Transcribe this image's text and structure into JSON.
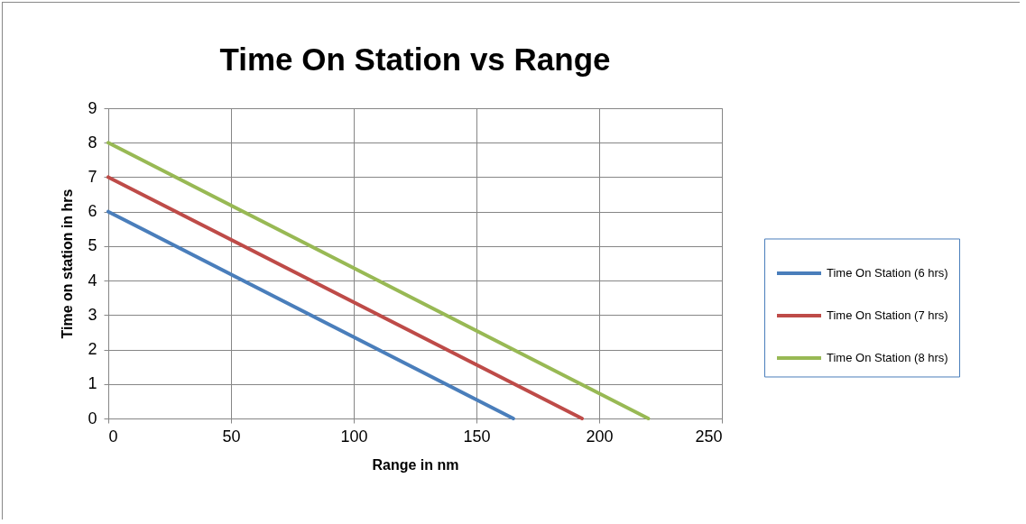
{
  "chart_data": {
    "type": "line",
    "title": "Time On Station vs Range",
    "xlabel": "Range in nm",
    "ylabel": "Time on station in hrs",
    "xlim": [
      0,
      250
    ],
    "xticks": [
      0,
      50,
      100,
      150,
      200,
      250
    ],
    "ylim": [
      0,
      9
    ],
    "yticks": [
      0,
      1,
      2,
      3,
      4,
      5,
      6,
      7,
      8,
      9
    ],
    "grid": true,
    "legend": "right",
    "marker": "none",
    "series": [
      {
        "name": "Time On Station (6 hrs)",
        "color": "#4a7ebb",
        "x": [
          0,
          165
        ],
        "values": [
          6,
          0
        ]
      },
      {
        "name": "Time On Station (7 hrs)",
        "color": "#be4b48",
        "x": [
          0,
          193
        ],
        "values": [
          7,
          0
        ]
      },
      {
        "name": "Time On Station (8 hrs)",
        "color": "#98b954",
        "x": [
          0,
          220
        ],
        "values": [
          8,
          0
        ]
      }
    ]
  }
}
